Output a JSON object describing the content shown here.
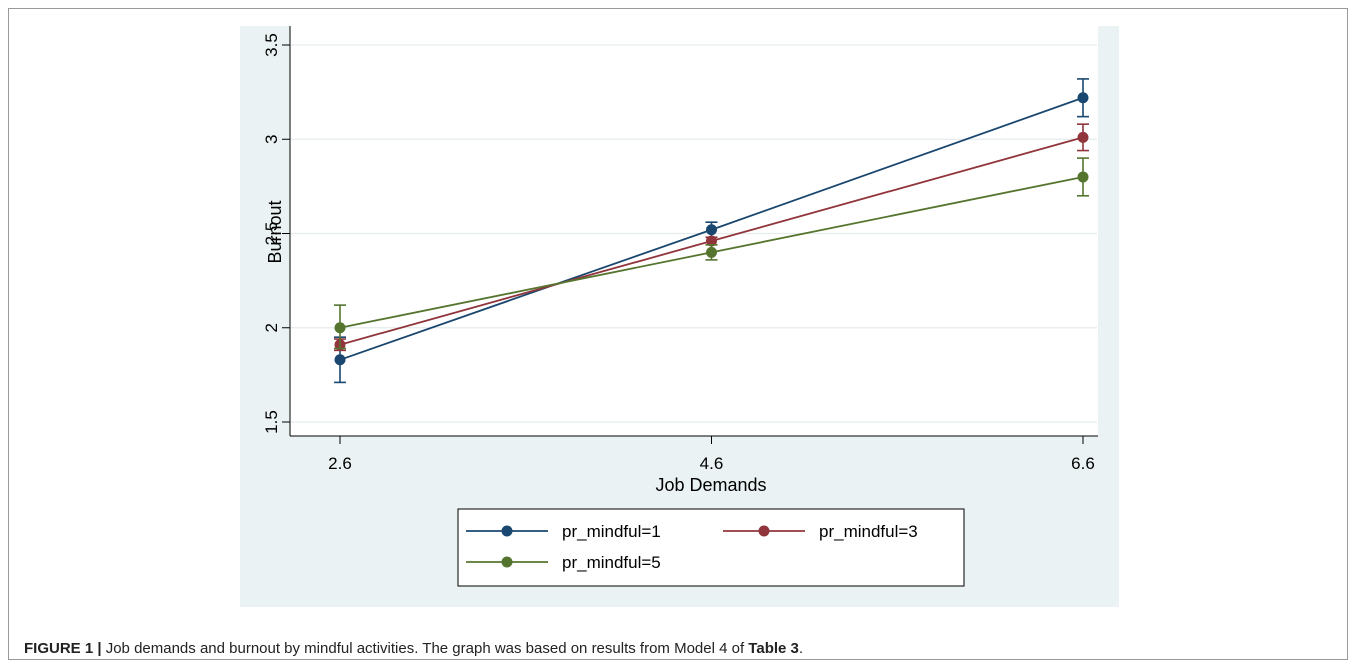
{
  "chart_data": {
    "type": "line",
    "xlabel": "Job Demands",
    "ylabel": "Burnout",
    "x": [
      2.6,
      4.6,
      6.6
    ],
    "x_ticks": [
      "2.6",
      "4.6",
      "6.6"
    ],
    "y_ticks": [
      "1.5",
      "2",
      "2.5",
      "3",
      "3.5"
    ],
    "ylim": [
      1.5,
      3.5
    ],
    "grid": true,
    "legend_placement": "bottom",
    "series": [
      {
        "name": "pr_mindful=1",
        "color": "#1a476f",
        "values": [
          1.83,
          2.52,
          3.22
        ],
        "err_low": [
          1.71,
          2.48,
          3.12
        ],
        "err_high": [
          1.95,
          2.56,
          3.32
        ]
      },
      {
        "name": "pr_mindful=3",
        "color": "#90353b",
        "values": [
          1.91,
          2.46,
          3.01
        ],
        "err_low": [
          1.88,
          2.44,
          2.94
        ],
        "err_high": [
          1.94,
          2.48,
          3.08
        ]
      },
      {
        "name": "pr_mindful=5",
        "color": "#55752f",
        "values": [
          2.0,
          2.4,
          2.8
        ],
        "err_low": [
          1.89,
          2.36,
          2.7
        ],
        "err_high": [
          2.12,
          2.44,
          2.9
        ]
      }
    ]
  },
  "caption": {
    "label": "FIGURE 1 |",
    "text_before": " Job demands and burnout by mindful activities. The graph was based on results from Model 4 of ",
    "table_ref": "Table 3",
    "text_after": "."
  }
}
